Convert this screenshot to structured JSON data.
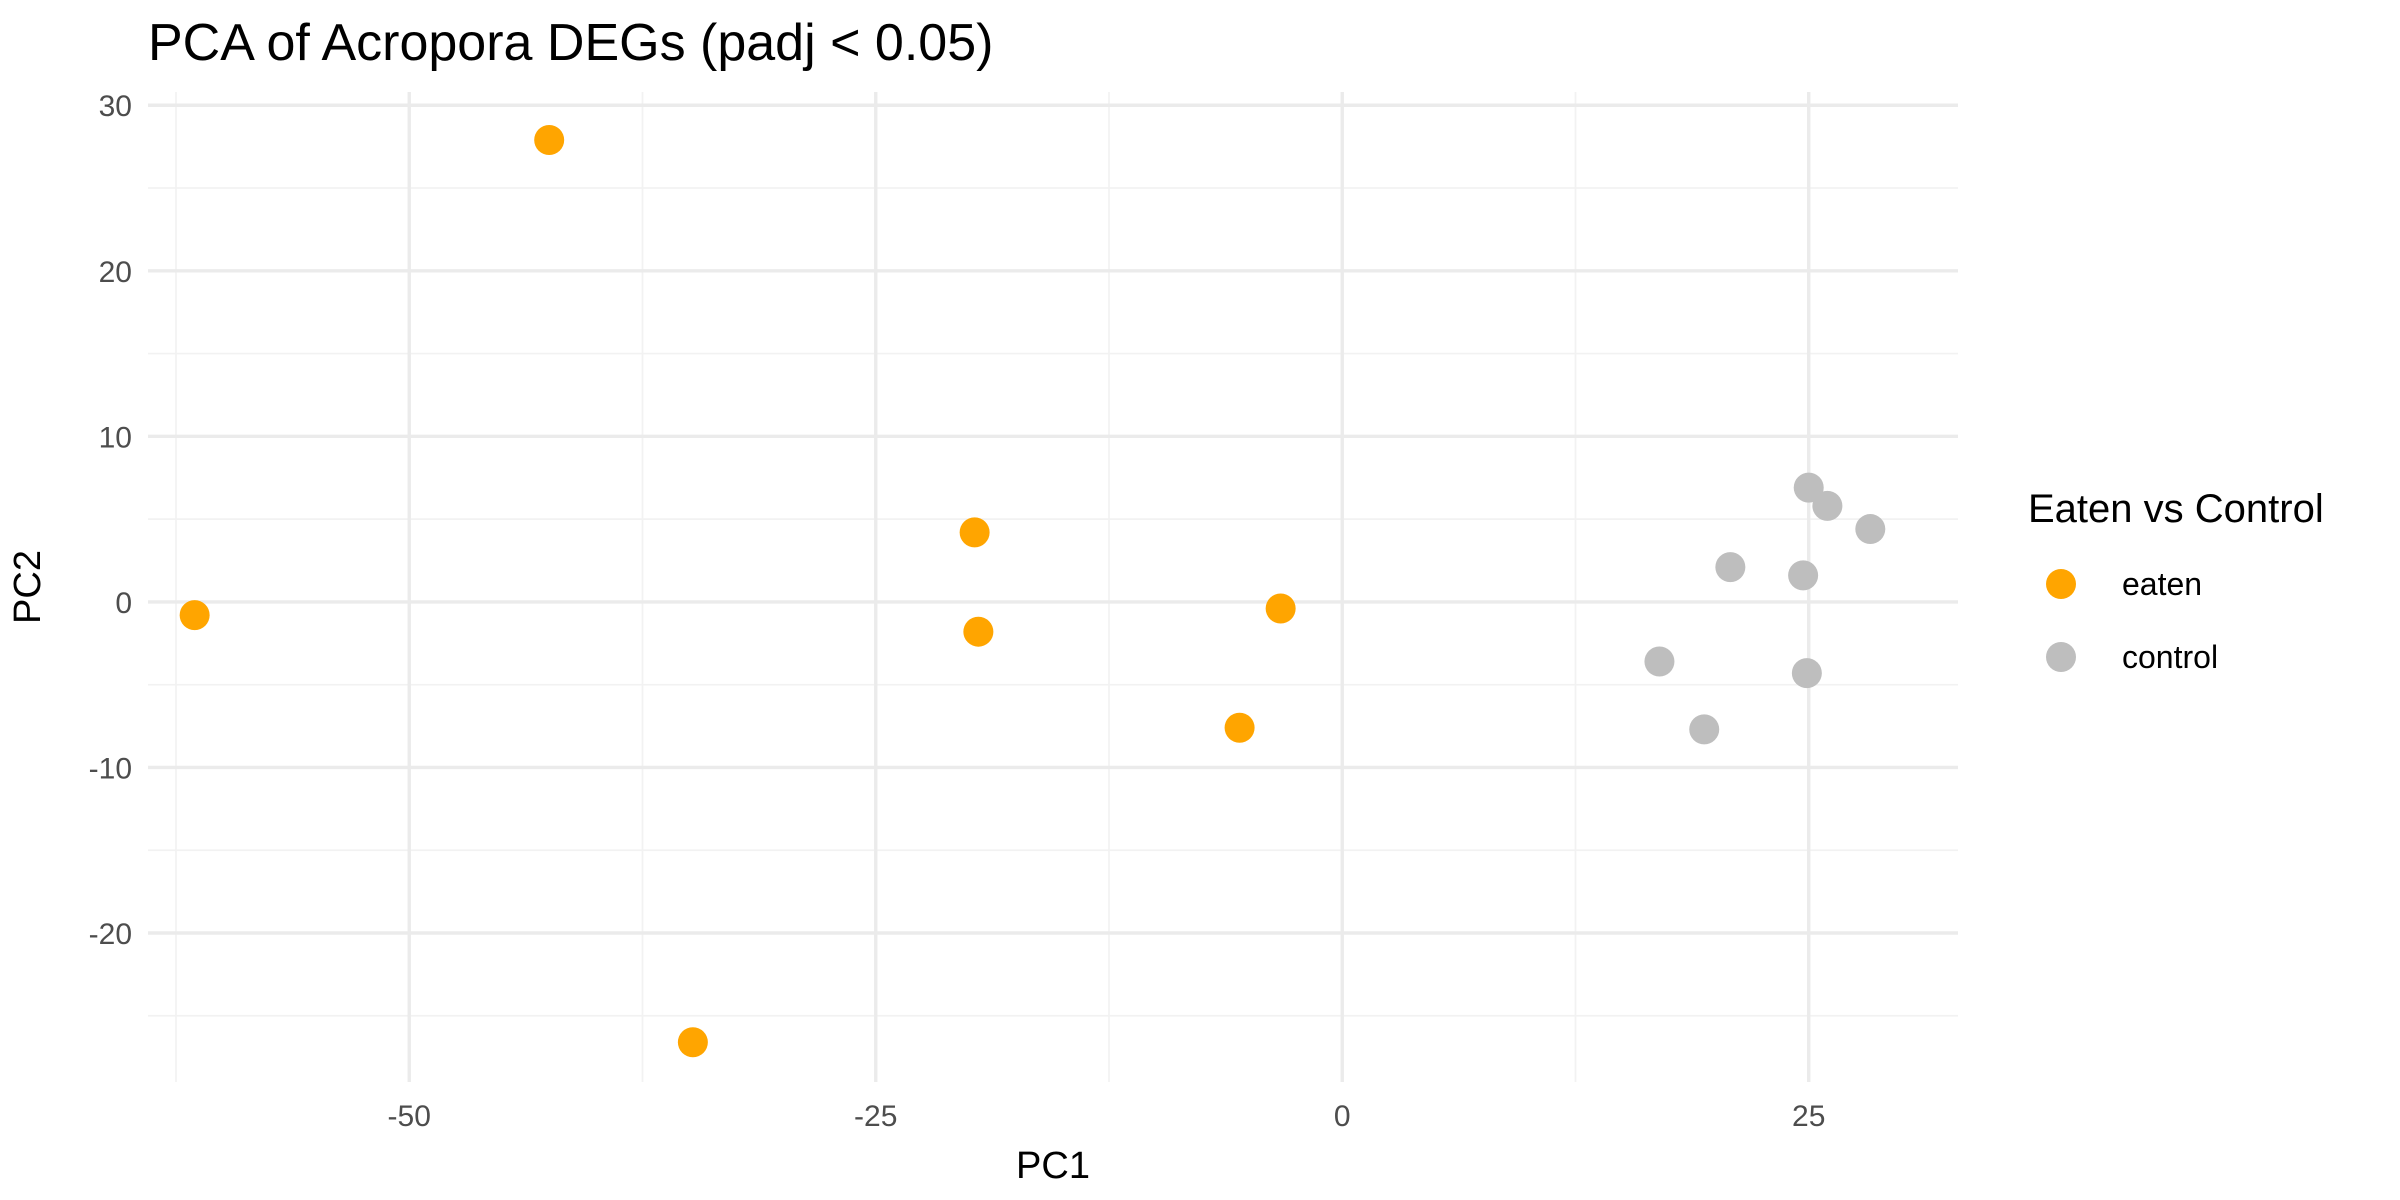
{
  "chart_data": {
    "type": "scatter",
    "title": "PCA of Acropora DEGs (padj < 0.05)",
    "xlabel": "PC1",
    "ylabel": "PC2",
    "xlim": [
      -64,
      33
    ],
    "ylim": [
      -29,
      30.8
    ],
    "x_ticks": [
      -50,
      -25,
      0,
      25
    ],
    "x_tick_labels": [
      "-50",
      "-25",
      "0",
      "25"
    ],
    "y_ticks": [
      -20,
      -10,
      0,
      10,
      20,
      30
    ],
    "y_tick_labels": [
      "-20",
      "-10",
      "0",
      "10",
      "20",
      "30"
    ],
    "grid": true,
    "legend": {
      "title": "Eaten vs Control",
      "position": "right"
    },
    "series": [
      {
        "name": "eaten",
        "color": "#FFA500",
        "points": [
          {
            "x": -61.5,
            "y": -0.8
          },
          {
            "x": -42.5,
            "y": 27.9
          },
          {
            "x": -34.8,
            "y": -26.6
          },
          {
            "x": -19.7,
            "y": 4.2
          },
          {
            "x": -19.5,
            "y": -1.8
          },
          {
            "x": -5.5,
            "y": -7.6
          },
          {
            "x": -3.3,
            "y": -0.4
          }
        ]
      },
      {
        "name": "control",
        "color": "#BEBEBE",
        "points": [
          {
            "x": 25.0,
            "y": 6.9
          },
          {
            "x": 26.0,
            "y": 5.8
          },
          {
            "x": 28.3,
            "y": 4.4
          },
          {
            "x": 20.8,
            "y": 2.1
          },
          {
            "x": 24.7,
            "y": 1.6
          },
          {
            "x": 17.0,
            "y": -3.6
          },
          {
            "x": 24.9,
            "y": -4.3
          },
          {
            "x": 19.4,
            "y": -7.7
          }
        ]
      }
    ]
  }
}
